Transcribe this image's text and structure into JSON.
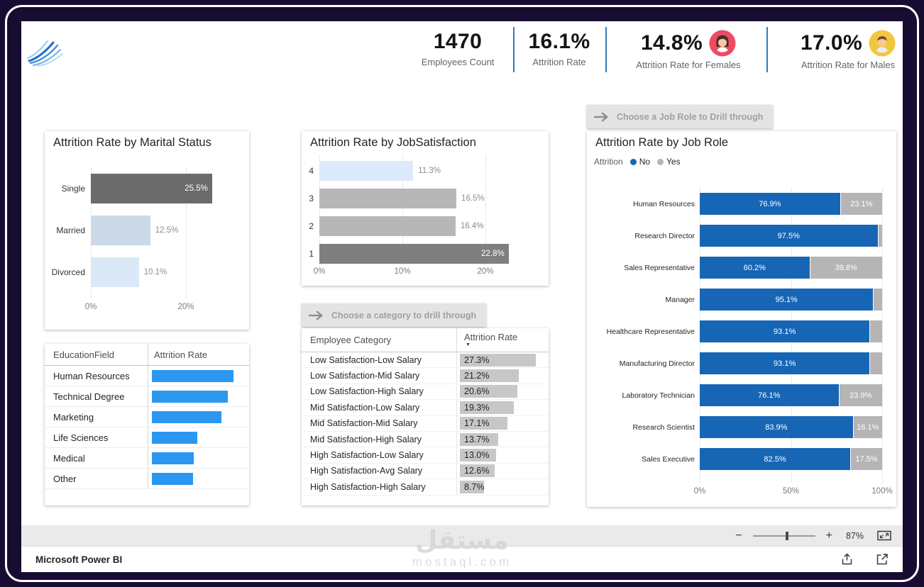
{
  "header": {
    "kpis": [
      {
        "value": "1470",
        "label": "Employees Count",
        "icon": null
      },
      {
        "value": "16.1%",
        "label": "Attrition Rate",
        "icon": null
      },
      {
        "value": "14.8%",
        "label": "Attrition Rate for Females",
        "icon": "female-avatar-icon"
      },
      {
        "value": "17.0%",
        "label": "Attrition Rate for Males",
        "icon": "male-avatar-icon"
      }
    ]
  },
  "drill_through": {
    "category_button": "Choose a category to drill through",
    "job_role_button": "Choose a Job Role to Drill through"
  },
  "footer": {
    "zoom_value": "87%",
    "app_name": "Microsoft Power BI"
  },
  "watermark": {
    "line1": "مستقل",
    "line2": "mostaql.com"
  },
  "colors": {
    "background_dark": "#170c31",
    "kpi_divider_blue": "#2e7cc0",
    "stacked_no_blue": "#1766b5",
    "stacked_yes_gray": "#b5b5b5",
    "table_data_bar_blue": "#2b97f0",
    "table_data_bar_gray": "#c7c7c7",
    "female_icon_bg": "#ee4b63",
    "male_icon_bg": "#f4c63c"
  },
  "chart_data": [
    {
      "id": "marital_status",
      "type": "bar",
      "orientation": "horizontal",
      "title": "Attrition Rate by Marital Status",
      "categories": [
        "Single",
        "Married",
        "Divorced"
      ],
      "values": [
        25.5,
        12.5,
        10.1
      ],
      "labels": [
        "25.5%",
        "12.5%",
        "10.1%"
      ],
      "bar_colors": [
        "#6b6b6b",
        "#ccd9e6",
        "#dae8f8"
      ],
      "label_inside": [
        true,
        false,
        false
      ],
      "x_ticks": [
        {
          "label": "0%",
          "value": 0
        },
        {
          "label": "20%",
          "value": 20
        }
      ],
      "xlim": [
        0,
        29.3
      ],
      "grid": true
    },
    {
      "id": "job_satisfaction",
      "type": "bar",
      "orientation": "horizontal",
      "title": "Attrition Rate by JobSatisfaction",
      "categories": [
        "4",
        "3",
        "2",
        "1"
      ],
      "values": [
        11.3,
        16.5,
        16.4,
        22.8
      ],
      "labels": [
        "11.3%",
        "16.5%",
        "16.4%",
        "22.8%"
      ],
      "bar_colors": [
        "#dceafb",
        "#b7b7b7",
        "#b7b7b7",
        "#7f7f7f"
      ],
      "label_inside": [
        false,
        false,
        false,
        true
      ],
      "x_ticks": [
        {
          "label": "0%",
          "value": 0
        },
        {
          "label": "10%",
          "value": 10
        },
        {
          "label": "20%",
          "value": 20
        }
      ],
      "xlim": [
        0,
        25.6
      ],
      "grid": true
    },
    {
      "id": "education_field",
      "type": "table",
      "columns": [
        "EducationField",
        "Attrition Rate"
      ],
      "rows": [
        "Human Resources",
        "Technical Degree",
        "Marketing",
        "Life Sciences",
        "Medical",
        "Other"
      ],
      "bar_fractions": [
        1.0,
        0.93,
        0.85,
        0.56,
        0.51,
        0.5
      ],
      "note": "values shown as blue data bars only; numeric values not displayed"
    },
    {
      "id": "employee_category",
      "type": "table",
      "columns": [
        "Employee Category",
        "Attrition Rate"
      ],
      "sort_column": "Attrition Rate",
      "sort_direction": "descending",
      "rows": [
        {
          "category": "Low Satisfaction-Low Salary",
          "value": 27.3,
          "label": "27.3%"
        },
        {
          "category": "Low Satisfaction-Mid Salary",
          "value": 21.2,
          "label": "21.2%"
        },
        {
          "category": "Low Satisfaction-High Salary",
          "value": 20.6,
          "label": "20.6%"
        },
        {
          "category": "Mid Satisfaction-Low Salary",
          "value": 19.3,
          "label": "19.3%"
        },
        {
          "category": "Mid Satisfaction-Mid Salary",
          "value": 17.1,
          "label": "17.1%"
        },
        {
          "category": "Mid Satisfaction-High Salary",
          "value": 13.7,
          "label": "13.7%"
        },
        {
          "category": "High Satisfaction-Low Salary",
          "value": 13.0,
          "label": "13.0%"
        },
        {
          "category": "High Satisfaction-Avg Salary",
          "value": 12.6,
          "label": "12.6%"
        },
        {
          "category": "High Satisfaction-High Salary",
          "value": 8.7,
          "label": "8.7%"
        }
      ]
    },
    {
      "id": "job_role",
      "type": "bar",
      "subtype": "stacked_100_horizontal",
      "title": "Attrition Rate by Job Role",
      "legend": {
        "title": "Attrition",
        "entries": [
          {
            "name": "No",
            "color": "#1766b5"
          },
          {
            "name": "Yes",
            "color": "#b5b5b5"
          }
        ],
        "position": "top"
      },
      "categories": [
        "Human Resources",
        "Research Director",
        "Sales Representative",
        "Manager",
        "Healthcare Representative",
        "Manufacturing Director",
        "Laboratory Technician",
        "Research Scientist",
        "Sales Executive"
      ],
      "series": [
        {
          "name": "No",
          "values": [
            76.9,
            97.5,
            60.2,
            95.1,
            93.1,
            93.1,
            76.1,
            83.9,
            82.5
          ]
        },
        {
          "name": "Yes",
          "values": [
            23.1,
            2.5,
            39.8,
            4.9,
            6.9,
            6.9,
            23.9,
            16.1,
            17.5
          ]
        }
      ],
      "yes_labels_shown": [
        true,
        false,
        true,
        false,
        false,
        false,
        true,
        true,
        true
      ],
      "x_ticks": [
        {
          "label": "0%",
          "value": 0
        },
        {
          "label": "50%",
          "value": 50
        },
        {
          "label": "100%",
          "value": 100
        }
      ],
      "xlim": [
        0,
        100
      ],
      "grid": true
    }
  ]
}
